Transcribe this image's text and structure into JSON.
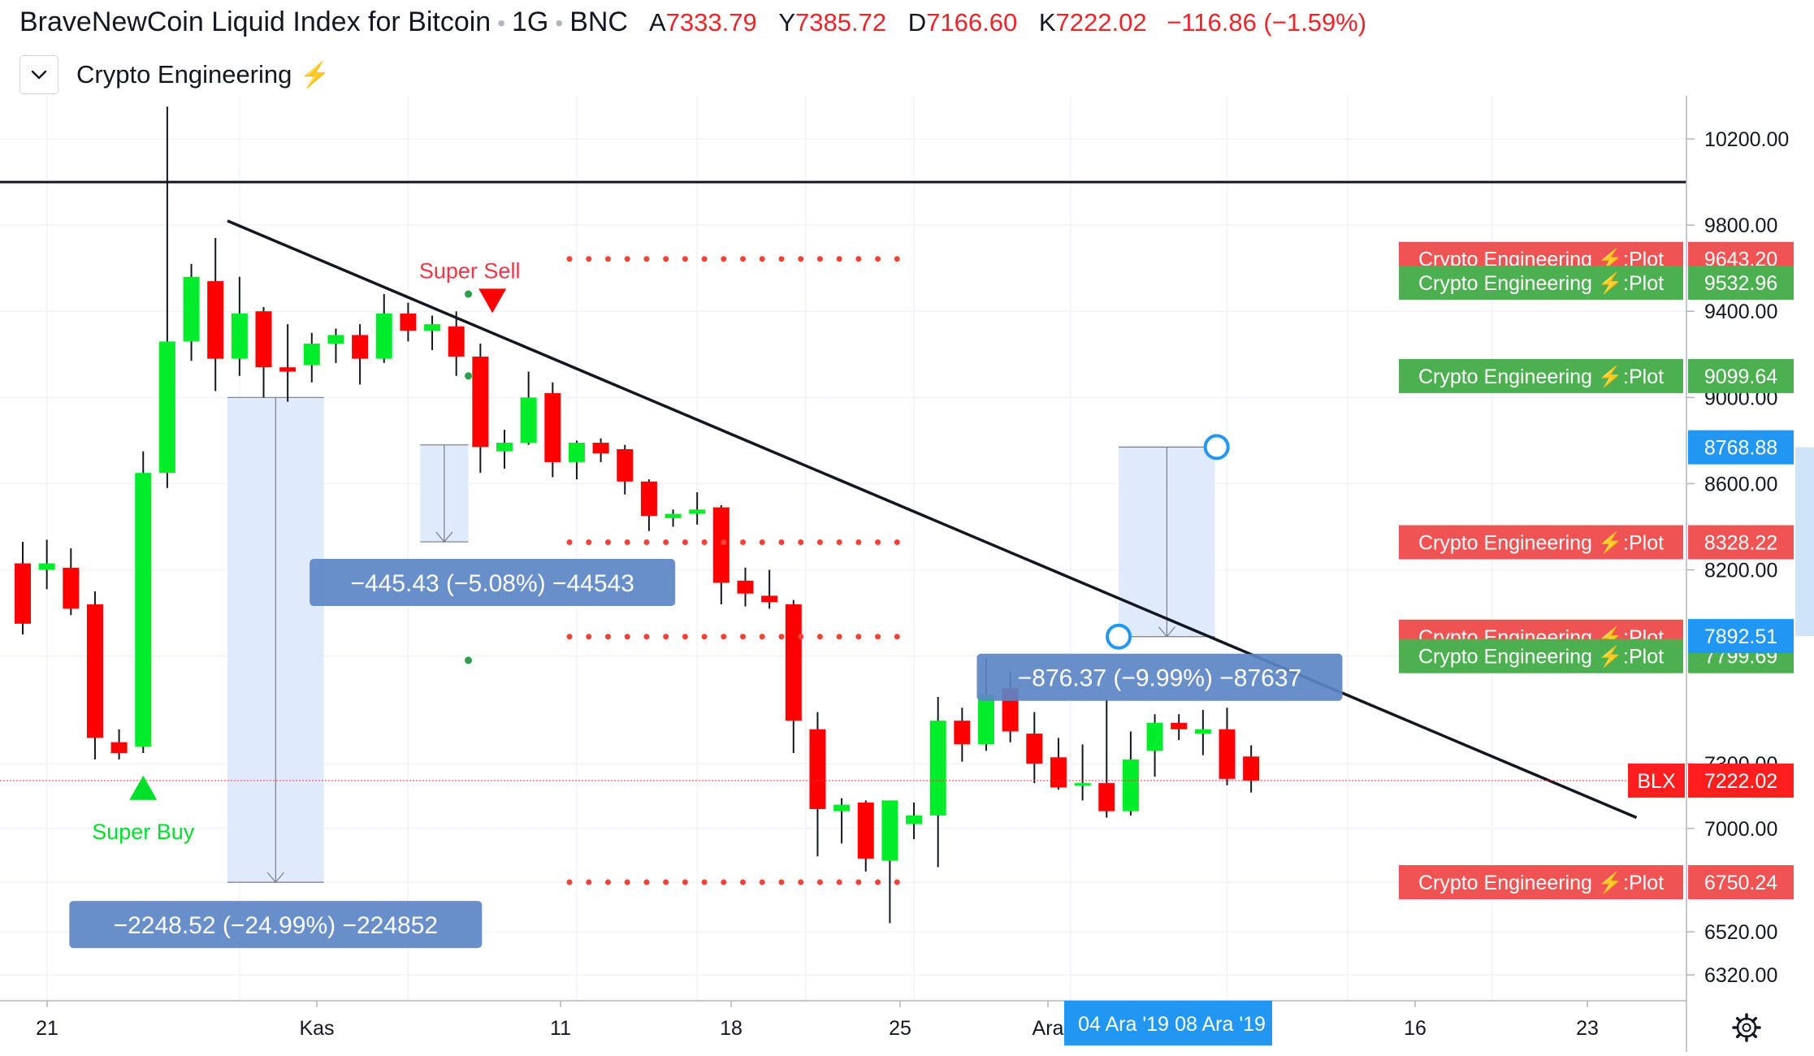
{
  "header": {
    "title": "BraveNewCoin Liquid Index for Bitcoin",
    "interval": "1G",
    "exchange": "BNC",
    "ohlc": [
      {
        "key": "A",
        "value": "7333.79"
      },
      {
        "key": "Y",
        "value": "7385.72"
      },
      {
        "key": "D",
        "value": "7166.60"
      },
      {
        "key": "K",
        "value": "7222.02"
      }
    ],
    "change": "−116.86 (−1.59%)"
  },
  "indicator": {
    "name": "Crypto Engineering",
    "icon": "lightning-bolt-icon"
  },
  "colors": {
    "up": "#00ee2a",
    "down": "#ff0000",
    "plot_red": "#f05354",
    "plot_green": "#4caf50",
    "accent_blue": "#2196f3",
    "measure_fill": "#d9e8fb",
    "measure_label": "#5c86c6"
  },
  "chart_data": {
    "type": "candlestick",
    "symbol": "BLX",
    "y_range": [
      6200,
      10400
    ],
    "y_ticks": [
      "10200.00",
      "9800.00",
      "9400.00",
      "9000.00",
      "8600.00",
      "8200.00",
      "7300.00",
      "7000.00",
      "6520.00",
      "6320.00"
    ],
    "x_ticks": [
      "21",
      "Kas",
      "11",
      "18",
      "25",
      "Ara",
      "16",
      "23"
    ],
    "x_highlight": [
      "04 Ara '19",
      "08 Ara '19"
    ],
    "candles": [
      {
        "o": 8230,
        "h": 8330,
        "l": 7900,
        "c": 7950
      },
      {
        "o": 8200,
        "h": 8340,
        "l": 8110,
        "c": 8230
      },
      {
        "o": 8210,
        "h": 8300,
        "l": 7990,
        "c": 8020
      },
      {
        "o": 8040,
        "h": 8100,
        "l": 7320,
        "c": 7420
      },
      {
        "o": 7400,
        "h": 7460,
        "l": 7320,
        "c": 7350
      },
      {
        "o": 7380,
        "h": 8750,
        "l": 7350,
        "c": 8650
      },
      {
        "o": 8650,
        "h": 10350,
        "l": 8580,
        "c": 9260
      },
      {
        "o": 9260,
        "h": 9620,
        "l": 9170,
        "c": 9560
      },
      {
        "o": 9540,
        "h": 9740,
        "l": 9030,
        "c": 9180
      },
      {
        "o": 9180,
        "h": 9560,
        "l": 9100,
        "c": 9390
      },
      {
        "o": 9400,
        "h": 9420,
        "l": 9000,
        "c": 9140
      },
      {
        "o": 9140,
        "h": 9340,
        "l": 8980,
        "c": 9120
      },
      {
        "o": 9150,
        "h": 9300,
        "l": 9070,
        "c": 9250
      },
      {
        "o": 9250,
        "h": 9320,
        "l": 9160,
        "c": 9290
      },
      {
        "o": 9290,
        "h": 9340,
        "l": 9060,
        "c": 9180
      },
      {
        "o": 9180,
        "h": 9480,
        "l": 9160,
        "c": 9390
      },
      {
        "o": 9390,
        "h": 9440,
        "l": 9260,
        "c": 9310
      },
      {
        "o": 9310,
        "h": 9380,
        "l": 9220,
        "c": 9340
      },
      {
        "o": 9330,
        "h": 9400,
        "l": 9100,
        "c": 9190
      },
      {
        "o": 9190,
        "h": 9250,
        "l": 8650,
        "c": 8770
      },
      {
        "o": 8750,
        "h": 8850,
        "l": 8670,
        "c": 8790
      },
      {
        "o": 8790,
        "h": 9120,
        "l": 8780,
        "c": 9000
      },
      {
        "o": 9020,
        "h": 9070,
        "l": 8630,
        "c": 8700
      },
      {
        "o": 8700,
        "h": 8800,
        "l": 8620,
        "c": 8790
      },
      {
        "o": 8790,
        "h": 8810,
        "l": 8700,
        "c": 8740
      },
      {
        "o": 8760,
        "h": 8780,
        "l": 8550,
        "c": 8610
      },
      {
        "o": 8610,
        "h": 8620,
        "l": 8380,
        "c": 8450
      },
      {
        "o": 8440,
        "h": 8480,
        "l": 8400,
        "c": 8460
      },
      {
        "o": 8460,
        "h": 8560,
        "l": 8410,
        "c": 8480
      },
      {
        "o": 8490,
        "h": 8500,
        "l": 8040,
        "c": 8140
      },
      {
        "o": 8150,
        "h": 8210,
        "l": 8030,
        "c": 8090
      },
      {
        "o": 8080,
        "h": 8200,
        "l": 8020,
        "c": 8050
      },
      {
        "o": 8040,
        "h": 8060,
        "l": 7350,
        "c": 7500
      },
      {
        "o": 7460,
        "h": 7540,
        "l": 6870,
        "c": 7090
      },
      {
        "o": 7080,
        "h": 7140,
        "l": 6930,
        "c": 7110
      },
      {
        "o": 7120,
        "h": 7130,
        "l": 6800,
        "c": 6860
      },
      {
        "o": 6850,
        "h": 7120,
        "l": 6560,
        "c": 7130
      },
      {
        "o": 7020,
        "h": 7120,
        "l": 6950,
        "c": 7060
      },
      {
        "o": 7060,
        "h": 7610,
        "l": 6820,
        "c": 7500
      },
      {
        "o": 7500,
        "h": 7560,
        "l": 7310,
        "c": 7390
      },
      {
        "o": 7390,
        "h": 7790,
        "l": 7360,
        "c": 7620
      },
      {
        "o": 7650,
        "h": 7730,
        "l": 7400,
        "c": 7450
      },
      {
        "o": 7440,
        "h": 7540,
        "l": 7210,
        "c": 7300
      },
      {
        "o": 7330,
        "h": 7420,
        "l": 7180,
        "c": 7190
      },
      {
        "o": 7210,
        "h": 7390,
        "l": 7130,
        "c": 7210
      },
      {
        "o": 7210,
        "h": 7600,
        "l": 7050,
        "c": 7080
      },
      {
        "o": 7080,
        "h": 7450,
        "l": 7060,
        "c": 7320
      },
      {
        "o": 7360,
        "h": 7530,
        "l": 7240,
        "c": 7490
      },
      {
        "o": 7490,
        "h": 7530,
        "l": 7410,
        "c": 7460
      },
      {
        "o": 7440,
        "h": 7550,
        "l": 7340,
        "c": 7460
      },
      {
        "o": 7460,
        "h": 7560,
        "l": 7200,
        "c": 7230
      },
      {
        "o": 7333.79,
        "h": 7385.72,
        "l": 7166.6,
        "c": 7222.02
      }
    ],
    "horizontal_line": 10000,
    "trend_line": {
      "from": {
        "x": 8.5,
        "y": 9820
      },
      "to": {
        "x": 67,
        "y": 7050
      }
    },
    "current_price_line": 7222.02,
    "dotted_levels": [
      {
        "y": 9643.2,
        "x_from": 22.7,
        "x_to": 36.5
      },
      {
        "y": 8328.22,
        "x_from": 22.7,
        "x_to": 36.5
      },
      {
        "y": 7889.89,
        "x_from": 22.7,
        "x_to": 36.5
      },
      {
        "y": 6750.24,
        "x_from": 22.7,
        "x_to": 36.5
      }
    ],
    "green_dots": [
      {
        "x": 18.5,
        "y": 9480
      },
      {
        "x": 18.5,
        "y": 9100
      },
      {
        "x": 18.5,
        "y": 7780
      }
    ],
    "signals": [
      {
        "label": "Super Buy",
        "type": "buy",
        "x": 5,
        "y": 7200
      },
      {
        "label": "Super Sell",
        "type": "sell",
        "x": 19.5,
        "y": 9460
      }
    ],
    "plots": [
      {
        "label": "Crypto Engineering ⚡:Plot",
        "value": "9643.20",
        "color": "red"
      },
      {
        "label": "Crypto Engineering ⚡:Plot",
        "value": "9532.96",
        "color": "green"
      },
      {
        "label": "Crypto Engineering ⚡:Plot",
        "value": "9099.64",
        "color": "green"
      },
      {
        "label": "Crypto Engineering ⚡:Plot",
        "value": "8328.22",
        "color": "red"
      },
      {
        "label": "Crypto Engineering ⚡:Plot",
        "value": "7889.89",
        "color": "red"
      },
      {
        "label": "Crypto Engineering ⚡:Plot",
        "value": "7799.69",
        "color": "green"
      },
      {
        "label": "Crypto Engineering ⚡:Plot",
        "value": "6750.24",
        "color": "red"
      }
    ],
    "price_tags": [
      {
        "label": "",
        "value": "8768.88"
      },
      {
        "label": "",
        "value": "7892.51"
      },
      {
        "label": "BLX",
        "value": "7222.02"
      }
    ],
    "measurements": [
      {
        "label": "−2248.52 (−24.99%) −224852",
        "x_from": 8.5,
        "x_to": 12.5,
        "y_from": 9000,
        "y_to": 6750
      },
      {
        "label": "−445.43 (−5.08%) −44543",
        "x_from": 16.5,
        "x_to": 18.5,
        "y_from": 8780,
        "y_to": 8330
      },
      {
        "label": "−876.37 (−9.99%) −87637",
        "x_from": 45.5,
        "x_to": 49.5,
        "y_from": 8770,
        "y_to": 7890
      }
    ]
  }
}
